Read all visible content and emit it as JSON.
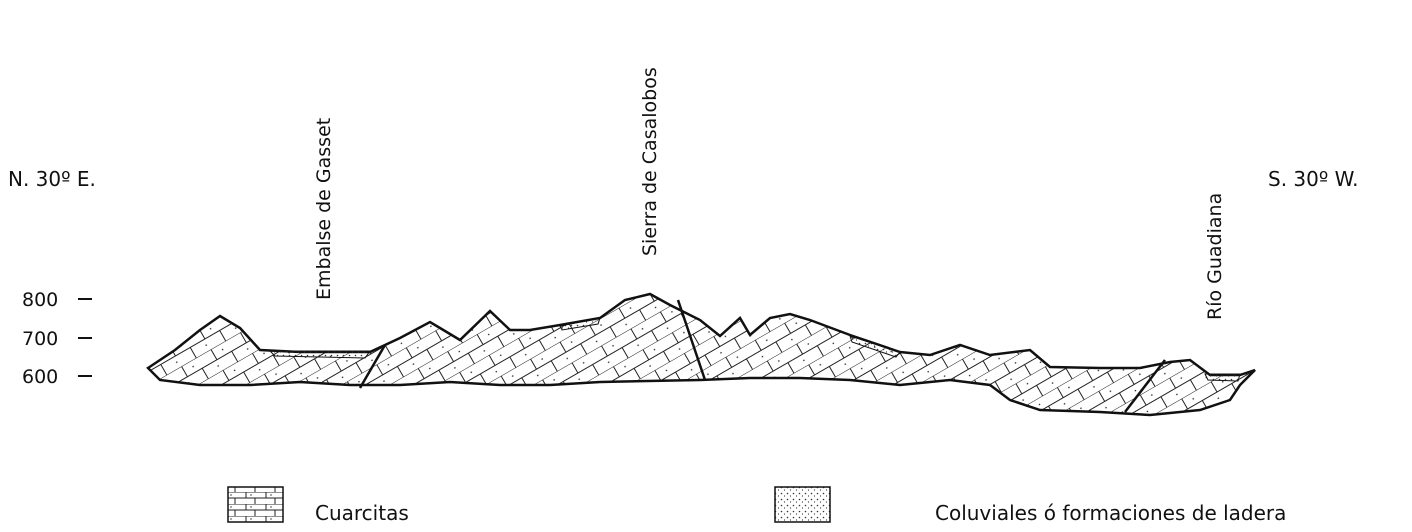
{
  "orientation": {
    "left": "N. 30º E.",
    "right": "S. 30º W."
  },
  "places": [
    "Embalse de Gasset",
    "Sierra de Casalobos",
    "Río Guadiana"
  ],
  "elevations": [
    "800",
    "700",
    "600"
  ],
  "legend": [
    "Cuarcitas",
    "Coluviales ó formaciones de ladera"
  ]
}
